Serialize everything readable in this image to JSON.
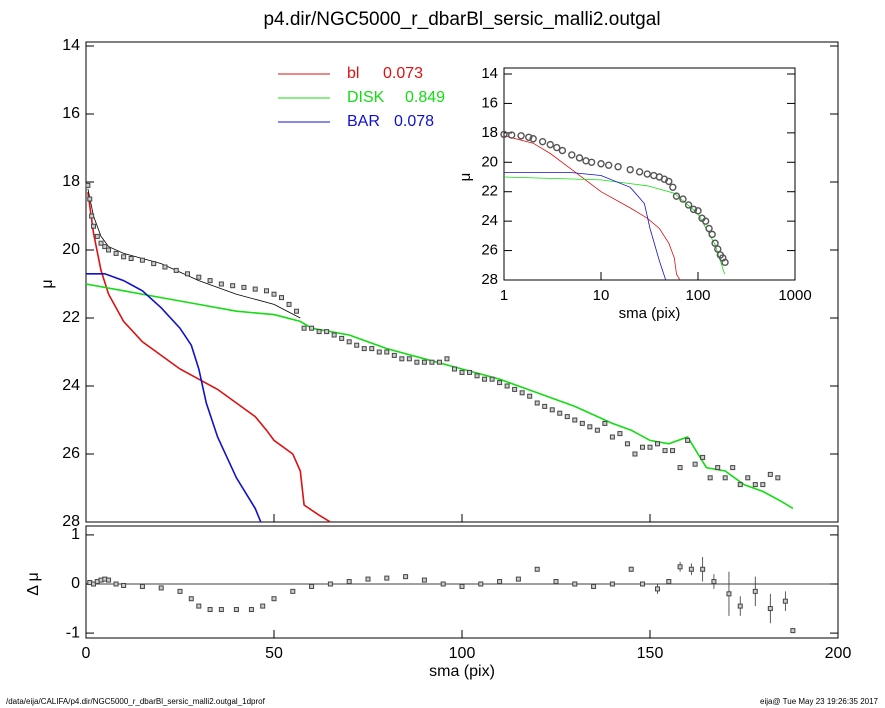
{
  "chart_data": [
    {
      "type": "line",
      "title": "p4.dir/NGC5000_r_dbarBl_sersic_malli2.outgal",
      "ylabel": "μ",
      "xlim": [
        0,
        200
      ],
      "xticks": [
        0,
        50,
        100,
        150,
        200
      ],
      "xtick_labels": false,
      "ylim": [
        14,
        28
      ],
      "yinvert": true,
      "yticks": [
        14,
        16,
        18,
        20,
        22,
        24,
        26,
        28
      ],
      "series": [
        {
          "name": "bl",
          "fraction": 0.073,
          "color": "#dd1111",
          "style": "line",
          "x": [
            0.5,
            2,
            4,
            6,
            10,
            15,
            20,
            25,
            30,
            35,
            40,
            45,
            48,
            50,
            55,
            57,
            58,
            62,
            65
          ],
          "values": [
            18.3,
            19.5,
            20.6,
            21.3,
            22.1,
            22.7,
            23.1,
            23.5,
            23.8,
            24.1,
            24.5,
            24.9,
            25.3,
            25.6,
            26.0,
            26.5,
            27.5,
            27.8,
            28.0
          ]
        },
        {
          "name": "DISK",
          "fraction": 0.849,
          "color": "#11dd11",
          "style": "line",
          "x": [
            0,
            10,
            20,
            30,
            40,
            50,
            57,
            60,
            70,
            80,
            90,
            100,
            110,
            120,
            130,
            140,
            145,
            150,
            155,
            160,
            165,
            170,
            175,
            180,
            185,
            188
          ],
          "values": [
            21.0,
            21.2,
            21.4,
            21.6,
            21.8,
            21.9,
            22.1,
            22.3,
            22.5,
            22.9,
            23.2,
            23.5,
            23.8,
            24.2,
            24.6,
            25.1,
            25.3,
            25.6,
            25.7,
            25.5,
            26.4,
            26.5,
            26.9,
            27.1,
            27.4,
            27.6
          ]
        },
        {
          "name": "BAR",
          "fraction": 0.078,
          "color": "#1111cc",
          "style": "line",
          "x": [
            0,
            5,
            10,
            15,
            20,
            25,
            28,
            30,
            32,
            35,
            40,
            45,
            46.5
          ],
          "values": [
            20.7,
            20.7,
            20.9,
            21.2,
            21.7,
            22.3,
            22.8,
            23.5,
            24.5,
            25.5,
            26.7,
            27.6,
            28.0
          ]
        },
        {
          "color": "#000000",
          "style": "line",
          "x": [
            0.5,
            2,
            4,
            6,
            10,
            20,
            30,
            40,
            50,
            57
          ],
          "values": [
            18.2,
            19.0,
            19.6,
            19.9,
            20.1,
            20.4,
            20.9,
            21.3,
            21.6,
            22.0
          ]
        },
        {
          "color": "#444444",
          "style": "squares",
          "x": [
            0.5,
            1,
            1.5,
            2,
            3,
            4,
            5,
            6,
            8,
            10,
            12,
            15,
            18,
            21,
            24,
            27,
            30,
            33,
            36,
            39,
            42,
            45,
            48,
            50,
            52,
            54,
            56,
            58,
            60,
            62,
            64,
            66,
            68,
            70,
            72,
            74,
            76,
            78,
            80,
            82,
            84,
            86,
            88,
            90,
            92,
            94,
            96,
            98,
            100,
            102,
            104,
            106,
            108,
            110,
            112,
            114,
            116,
            118,
            120,
            122,
            124,
            126,
            128,
            130,
            132,
            134,
            136,
            138,
            140,
            142,
            144,
            146,
            148,
            150,
            152,
            154,
            156,
            158,
            160,
            162,
            164,
            166,
            168,
            170,
            172,
            174,
            176,
            178,
            180,
            182,
            184
          ],
          "values": [
            18.1,
            18.5,
            19.0,
            19.3,
            19.6,
            19.8,
            19.9,
            20.0,
            20.1,
            20.2,
            20.25,
            20.3,
            20.4,
            20.5,
            20.6,
            20.7,
            20.8,
            20.9,
            21.0,
            21.05,
            21.1,
            21.15,
            21.2,
            21.3,
            21.4,
            21.6,
            21.8,
            22.3,
            22.3,
            22.4,
            22.4,
            22.5,
            22.6,
            22.7,
            22.8,
            22.9,
            22.9,
            23.0,
            23.0,
            23.1,
            23.2,
            23.2,
            23.3,
            23.3,
            23.3,
            23.3,
            23.2,
            23.5,
            23.6,
            23.6,
            23.7,
            23.8,
            23.8,
            23.9,
            24.0,
            24.1,
            24.2,
            24.3,
            24.5,
            24.6,
            24.7,
            24.8,
            24.9,
            25.0,
            25.1,
            25.2,
            25.3,
            25.1,
            25.5,
            25.4,
            25.7,
            26.0,
            25.8,
            25.8,
            25.7,
            25.9,
            25.9,
            26.4,
            25.6,
            26.3,
            26.1,
            26.7,
            26.4,
            26.7,
            26.4,
            26.9,
            26.7,
            26.9,
            26.9,
            26.6,
            26.7
          ]
        }
      ]
    },
    {
      "type": "residual",
      "xlabel": "sma (pix)",
      "ylabel": "Δ μ",
      "xlim": [
        0,
        200
      ],
      "xticks": [
        0,
        50,
        100,
        150,
        200
      ],
      "ylim": [
        -1.1,
        1.1
      ],
      "yticks": [
        -1,
        0,
        1
      ],
      "zero_line": true,
      "series": [
        {
          "color": "#444444",
          "style": "squares",
          "x": [
            1,
            2,
            3,
            4,
            5,
            6,
            8,
            10,
            15,
            20,
            25,
            28,
            30,
            33,
            36,
            40,
            44,
            47,
            50,
            55,
            60,
            65,
            70,
            75,
            80,
            85,
            90,
            95,
            100,
            105,
            110,
            115,
            120,
            125,
            130,
            135,
            140,
            145,
            148,
            152,
            155,
            158,
            161,
            164,
            167,
            171,
            174,
            178,
            182,
            186,
            188
          ],
          "values": [
            0.03,
            0.0,
            0.05,
            0.08,
            0.1,
            0.08,
            0.0,
            -0.03,
            -0.05,
            -0.08,
            -0.15,
            -0.3,
            -0.45,
            -0.52,
            -0.52,
            -0.52,
            -0.52,
            -0.45,
            -0.3,
            -0.15,
            -0.05,
            0.0,
            0.05,
            0.1,
            0.12,
            0.15,
            0.08,
            0.0,
            -0.05,
            0.0,
            0.05,
            0.1,
            0.3,
            0.05,
            0.0,
            -0.05,
            0.0,
            0.3,
            0.0,
            -0.1,
            0.05,
            0.35,
            0.3,
            0.3,
            0.05,
            -0.2,
            -0.45,
            -0.15,
            -0.5,
            -0.35,
            -0.95
          ],
          "errors": [
            0.02,
            0.02,
            0.02,
            0.02,
            0.02,
            0.02,
            0.02,
            0.02,
            0.02,
            0.02,
            0.02,
            0.02,
            0.02,
            0.02,
            0.02,
            0.02,
            0.02,
            0.02,
            0.02,
            0.02,
            0.02,
            0.02,
            0.02,
            0.02,
            0.02,
            0.02,
            0.02,
            0.02,
            0.02,
            0.02,
            0.02,
            0.02,
            0.02,
            0.02,
            0.02,
            0.02,
            0.02,
            0.05,
            0.02,
            0.1,
            0.02,
            0.1,
            0.12,
            0.25,
            0.15,
            0.45,
            0.2,
            0.3,
            0.3,
            0.2,
            0.05
          ]
        }
      ]
    },
    {
      "type": "line",
      "xlabel": "sma (pix)",
      "ylabel": "μ",
      "xlog": true,
      "xlim": [
        1,
        1000
      ],
      "xticks": [
        1,
        10,
        100,
        1000
      ],
      "ylim": [
        14,
        28
      ],
      "yinvert": true,
      "yticks": [
        14,
        16,
        18,
        20,
        22,
        24,
        26,
        28
      ],
      "series": [
        {
          "color": "#dd1111",
          "style": "line",
          "x": [
            1,
            2,
            3,
            5,
            10,
            20,
            30,
            40,
            50,
            57,
            60,
            65
          ],
          "values": [
            18.2,
            18.7,
            19.4,
            20.5,
            22.0,
            23.1,
            23.8,
            24.5,
            25.5,
            26.5,
            27.6,
            28.0
          ]
        },
        {
          "color": "#11dd11",
          "style": "line",
          "x": [
            1,
            10,
            30,
            57,
            100,
            150,
            188
          ],
          "values": [
            21.0,
            21.2,
            21.6,
            22.1,
            23.5,
            25.6,
            27.6
          ]
        },
        {
          "color": "#1111cc",
          "style": "line",
          "x": [
            1,
            5,
            10,
            20,
            28,
            32,
            40,
            46.5
          ],
          "values": [
            20.7,
            20.7,
            20.9,
            21.7,
            22.8,
            24.5,
            26.7,
            28.0
          ]
        },
        {
          "color": "#555555",
          "style": "circles",
          "x": [
            1,
            1.2,
            1.5,
            1.8,
            2,
            2.5,
            3,
            3.5,
            4,
            5,
            6,
            7,
            8,
            10,
            12,
            15,
            20,
            25,
            30,
            35,
            40,
            45,
            50,
            55,
            60,
            70,
            80,
            90,
            100,
            110,
            120,
            130,
            140,
            150,
            160,
            170,
            180,
            190
          ],
          "values": [
            18.1,
            18.15,
            18.2,
            18.3,
            18.4,
            18.6,
            18.8,
            19.0,
            19.2,
            19.5,
            19.7,
            19.9,
            20.0,
            20.1,
            20.2,
            20.3,
            20.5,
            20.65,
            20.8,
            20.9,
            21.0,
            21.15,
            21.3,
            21.7,
            22.3,
            22.5,
            22.9,
            23.2,
            23.3,
            23.8,
            24.0,
            24.5,
            24.9,
            25.5,
            25.9,
            26.3,
            26.5,
            26.8
          ]
        }
      ]
    }
  ],
  "footer": {
    "left": "/data/eija/CALIFA/p4.dir/NGC5000_r_dbarBl_sersic_malli2.outgal_1dprof",
    "right": "eija@  Tue May 23 19:26:35 2017"
  }
}
